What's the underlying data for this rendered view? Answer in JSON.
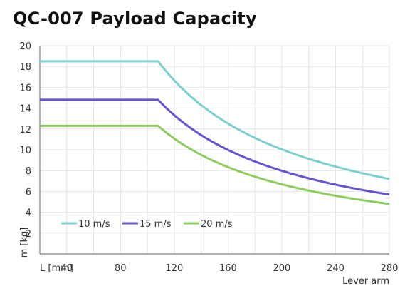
{
  "chart_data": {
    "type": "line",
    "title": "QC-007 Payload Capacity",
    "xlabel": "Lever arm",
    "x_unit_label": "L [mm]",
    "ylabel": "m [kg]",
    "xlim": [
      20,
      280
    ],
    "ylim": [
      0,
      20
    ],
    "x_ticks": [
      40,
      80,
      120,
      160,
      200,
      240,
      280
    ],
    "y_ticks": [
      0,
      2,
      4,
      6,
      8,
      10,
      12,
      14,
      16,
      18,
      20
    ],
    "grid": true,
    "legend_position": "bottom-left",
    "series": [
      {
        "name": "10 m/s",
        "color": "#7ccfcf",
        "plateau": 18.5,
        "knee_x": 108,
        "end_y": 7.2,
        "x": [
          20,
          60,
          108,
          120,
          160,
          200,
          240,
          280
        ],
        "y": [
          18.5,
          18.5,
          18.5,
          16.7,
          12.5,
          10.0,
          8.3,
          7.2
        ]
      },
      {
        "name": "15 m/s",
        "color": "#6a52d0",
        "plateau": 14.8,
        "knee_x": 108,
        "end_y": 5.7,
        "x": [
          20,
          60,
          108,
          120,
          160,
          200,
          240,
          280
        ],
        "y": [
          14.8,
          14.8,
          14.8,
          13.3,
          10.0,
          8.0,
          6.7,
          5.7
        ]
      },
      {
        "name": "20 m/s",
        "color": "#8fcc5e",
        "plateau": 12.3,
        "knee_x": 108,
        "end_y": 4.8,
        "x": [
          20,
          60,
          108,
          120,
          160,
          200,
          240,
          280
        ],
        "y": [
          12.3,
          12.3,
          12.3,
          11.1,
          8.3,
          6.6,
          5.5,
          4.8
        ]
      }
    ]
  }
}
